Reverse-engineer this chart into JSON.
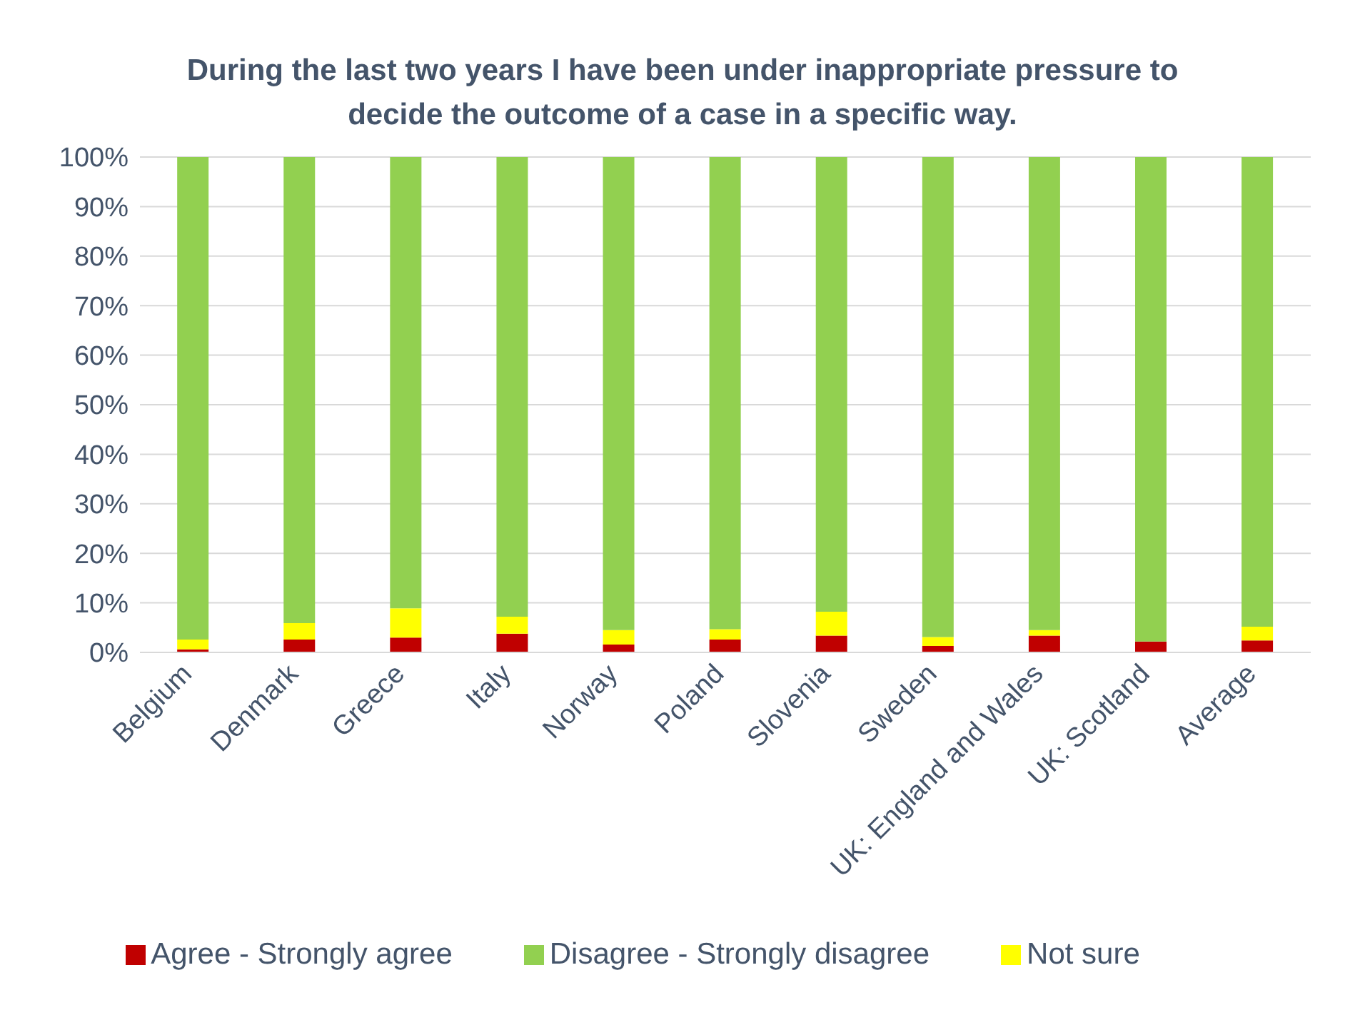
{
  "chart_data": {
    "type": "bar",
    "stacked": true,
    "title": "During the last two years I have been under inappropriate pressure to decide the outcome of a case in a specific way.",
    "categories": [
      "Belgium",
      "Denmark",
      "Greece",
      "Italy",
      "Norway",
      "Poland",
      "Slovenia",
      "Sweden",
      "UK: England and Wales",
      "UK: Scotland",
      "Average"
    ],
    "series": [
      {
        "name": "Agree - Strongly agree",
        "color": "#c00000",
        "values": [
          0.6,
          2.6,
          3.0,
          3.8,
          1.6,
          2.6,
          3.4,
          1.3,
          3.4,
          2.2,
          2.4
        ]
      },
      {
        "name": "Not sure",
        "color": "#ffff00",
        "values": [
          2.0,
          3.3,
          5.9,
          3.4,
          2.9,
          2.1,
          4.8,
          1.8,
          1.1,
          0,
          2.8
        ]
      },
      {
        "name": "Disagree - Strongly disagree",
        "color": "#92d050",
        "values": [
          97.4,
          94.1,
          91.1,
          92.8,
          95.5,
          95.3,
          91.8,
          96.9,
          95.5,
          97.8,
          94.8
        ]
      }
    ],
    "ylim": [
      0,
      100
    ],
    "yticks": [
      {
        "value": 0,
        "label": "0%"
      },
      {
        "value": 10,
        "label": "10%"
      },
      {
        "value": 20,
        "label": "20%"
      },
      {
        "value": 30,
        "label": "30%"
      },
      {
        "value": 40,
        "label": "40%"
      },
      {
        "value": 50,
        "label": "50%"
      },
      {
        "value": 60,
        "label": "60%"
      },
      {
        "value": 70,
        "label": "70%"
      },
      {
        "value": 80,
        "label": "80%"
      },
      {
        "value": 90,
        "label": "90%"
      },
      {
        "value": 100,
        "label": "100%"
      }
    ],
    "grid": "y",
    "legend": "bottom"
  }
}
